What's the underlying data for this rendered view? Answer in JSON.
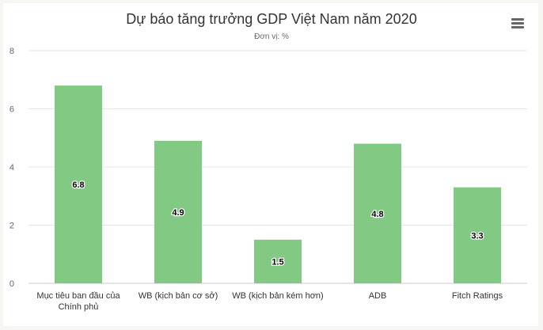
{
  "title": "Dự báo tăng trưởng GDP Việt Nam năm 2020",
  "subtitle": "Đơn vị: %",
  "menu_icon": "hamburger-menu-icon",
  "colors": {
    "bar": "#82c983",
    "grid": "#e6e6e6",
    "axis": "#cccccc"
  },
  "chart_data": {
    "type": "bar",
    "title": "Dự báo tăng trưởng GDP Việt Nam năm 2020",
    "subtitle": "Đơn vị: %",
    "categories": [
      [
        "Mục tiêu ban đầu của",
        "Chính phủ"
      ],
      [
        "WB (kịch bản cơ sở)"
      ],
      [
        "WB (kịch bản kém hơn)"
      ],
      [
        "ADB"
      ],
      [
        "Fitch Ratings"
      ]
    ],
    "values": [
      6.8,
      4.9,
      1.5,
      4.8,
      3.3
    ],
    "data_labels": [
      "6.8",
      "4.9",
      "1.5",
      "4.8",
      "3.3"
    ],
    "yticks": [
      "0",
      "2",
      "4",
      "6",
      "8"
    ],
    "ylim": [
      0,
      8
    ],
    "grid": true,
    "legend": "none"
  }
}
